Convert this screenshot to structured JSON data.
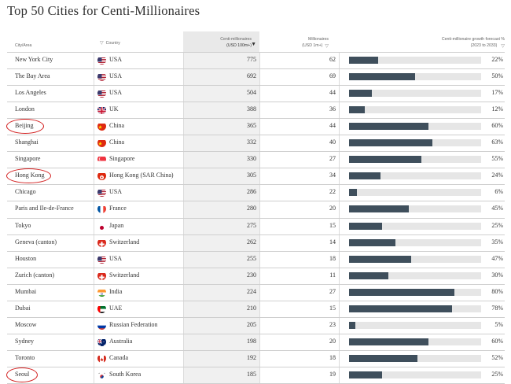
{
  "title": "Top 50 Cities for Centi-Millionaires",
  "headers": {
    "city": "City/Area",
    "country": "Country",
    "centi_line1": "Centi-millionaires",
    "centi_line2": "(USD 100m+)",
    "mil_line1": "Millionaires",
    "mil_line2": "(USD 1m+)",
    "growth_line1": "Centi-millionaire growth forecast %",
    "growth_line2": "(2023 to 2033)"
  },
  "colors": {
    "bar": "#3f4f5c",
    "track": "#e6e6e6",
    "annotation": "#d21f1f"
  },
  "rows": [
    {
      "city": "New York City",
      "country": "USA",
      "flag": "us-flag",
      "centi": "775",
      "mil": "62",
      "growth": 22,
      "growth_label": "22%",
      "circled": false
    },
    {
      "city": "The Bay Area",
      "country": "USA",
      "flag": "us-flag",
      "centi": "692",
      "mil": "69",
      "growth": 50,
      "growth_label": "50%",
      "circled": false
    },
    {
      "city": "Los Angeles",
      "country": "USA",
      "flag": "us-flag",
      "centi": "504",
      "mil": "44",
      "growth": 17,
      "growth_label": "17%",
      "circled": false
    },
    {
      "city": "London",
      "country": "UK",
      "flag": "uk-flag",
      "centi": "388",
      "mil": "36",
      "growth": 12,
      "growth_label": "12%",
      "circled": false
    },
    {
      "city": "Beijing",
      "country": "China",
      "flag": "china-flag",
      "centi": "365",
      "mil": "44",
      "growth": 60,
      "growth_label": "60%",
      "circled": true
    },
    {
      "city": "Shanghai",
      "country": "China",
      "flag": "china-flag",
      "centi": "332",
      "mil": "40",
      "growth": 63,
      "growth_label": "63%",
      "circled": false
    },
    {
      "city": "Singapore",
      "country": "Singapore",
      "flag": "singapore-flag",
      "centi": "330",
      "mil": "27",
      "growth": 55,
      "growth_label": "55%",
      "circled": false
    },
    {
      "city": "Hong Kong",
      "country": "Hong Kong (SAR China)",
      "flag": "hongkong-flag",
      "centi": "305",
      "mil": "34",
      "growth": 24,
      "growth_label": "24%",
      "circled": true
    },
    {
      "city": "Chicago",
      "country": "USA",
      "flag": "us-flag",
      "centi": "286",
      "mil": "22",
      "growth": 6,
      "growth_label": "6%",
      "circled": false
    },
    {
      "city": "Paris and Ile-de-France",
      "country": "France",
      "flag": "france-flag",
      "centi": "280",
      "mil": "20",
      "growth": 45,
      "growth_label": "45%",
      "circled": false
    },
    {
      "city": "Tokyo",
      "country": "Japan",
      "flag": "japan-flag",
      "centi": "275",
      "mil": "15",
      "growth": 25,
      "growth_label": "25%",
      "circled": false
    },
    {
      "city": "Geneva (canton)",
      "country": "Switzerland",
      "flag": "switzerland-flag",
      "centi": "262",
      "mil": "14",
      "growth": 35,
      "growth_label": "35%",
      "circled": false
    },
    {
      "city": "Houston",
      "country": "USA",
      "flag": "us-flag",
      "centi": "255",
      "mil": "18",
      "growth": 47,
      "growth_label": "47%",
      "circled": false
    },
    {
      "city": "Zurich (canton)",
      "country": "Switzerland",
      "flag": "switzerland-flag",
      "centi": "230",
      "mil": "11",
      "growth": 30,
      "growth_label": "30%",
      "circled": false
    },
    {
      "city": "Mumbai",
      "country": "India",
      "flag": "india-flag",
      "centi": "224",
      "mil": "27",
      "growth": 80,
      "growth_label": "80%",
      "circled": false
    },
    {
      "city": "Dubai",
      "country": "UAE",
      "flag": "uae-flag",
      "centi": "210",
      "mil": "15",
      "growth": 78,
      "growth_label": "78%",
      "circled": false
    },
    {
      "city": "Moscow",
      "country": "Russian Federation",
      "flag": "russia-flag",
      "centi": "205",
      "mil": "23",
      "growth": 5,
      "growth_label": "5%",
      "circled": false
    },
    {
      "city": "Sydney",
      "country": "Australia",
      "flag": "australia-flag",
      "centi": "198",
      "mil": "20",
      "growth": 60,
      "growth_label": "60%",
      "circled": false
    },
    {
      "city": "Toronto",
      "country": "Canada",
      "flag": "canada-flag",
      "centi": "192",
      "mil": "18",
      "growth": 52,
      "growth_label": "52%",
      "circled": false
    },
    {
      "city": "Seoul",
      "country": "South Korea",
      "flag": "southkorea-flag",
      "centi": "185",
      "mil": "19",
      "growth": 25,
      "growth_label": "25%",
      "circled": true
    }
  ]
}
